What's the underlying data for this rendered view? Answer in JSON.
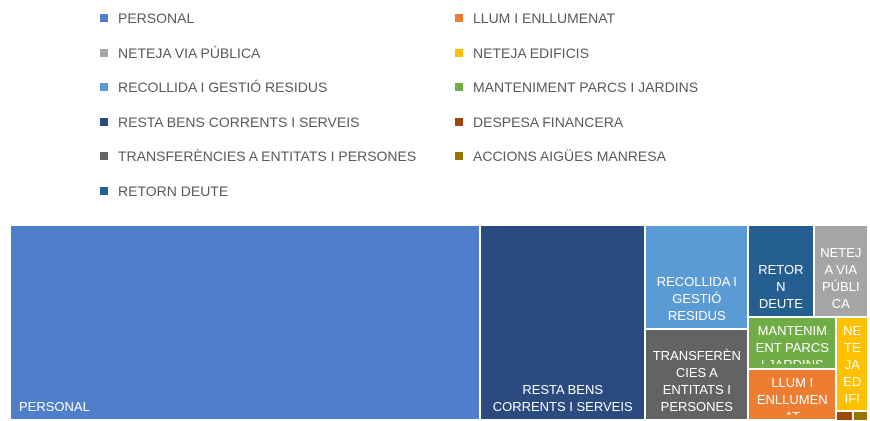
{
  "chart_data": {
    "type": "treemap",
    "series": [
      {
        "name": "PERSONAL",
        "color": "#4f7fcb",
        "values": [
          89700
        ]
      },
      {
        "name": "LLUM I ENLLUMENAT",
        "color": "#ed7d31",
        "values": [
          4400
        ]
      },
      {
        "name": "NETEJA VIA PÚBLICA",
        "color": "#a5a5a5",
        "values": [
          4900
        ]
      },
      {
        "name": "NETEJA EDIFICIS",
        "color": "#ffc000",
        "values": [
          2900
        ]
      },
      {
        "name": "RECOLLIDA I GESTIÓ RESIDUS",
        "color": "#5b9bd5",
        "values": [
          10500
        ]
      },
      {
        "name": "MANTENIMENT PARCS I JARDINS",
        "color": "#70ad47",
        "values": [
          4500
        ]
      },
      {
        "name": "RESTA BENS CORRENTS I SERVEIS",
        "color": "#2b4a80",
        "values": [
          31600
        ]
      },
      {
        "name": "DESPESA FINANCERA",
        "color": "#9e480e",
        "values": [
          150
        ]
      },
      {
        "name": "TRANSFERÈNCIES A ENTITATS I PERSONES",
        "color": "#636363",
        "values": [
          9100
        ]
      },
      {
        "name": "ACCIONS AIGÜES MANRESA",
        "color": "#997300",
        "values": [
          130
        ]
      },
      {
        "name": "RETORN DEUTE",
        "color": "#255e91",
        "values": [
          5900
        ]
      }
    ],
    "legend": "top"
  }
}
